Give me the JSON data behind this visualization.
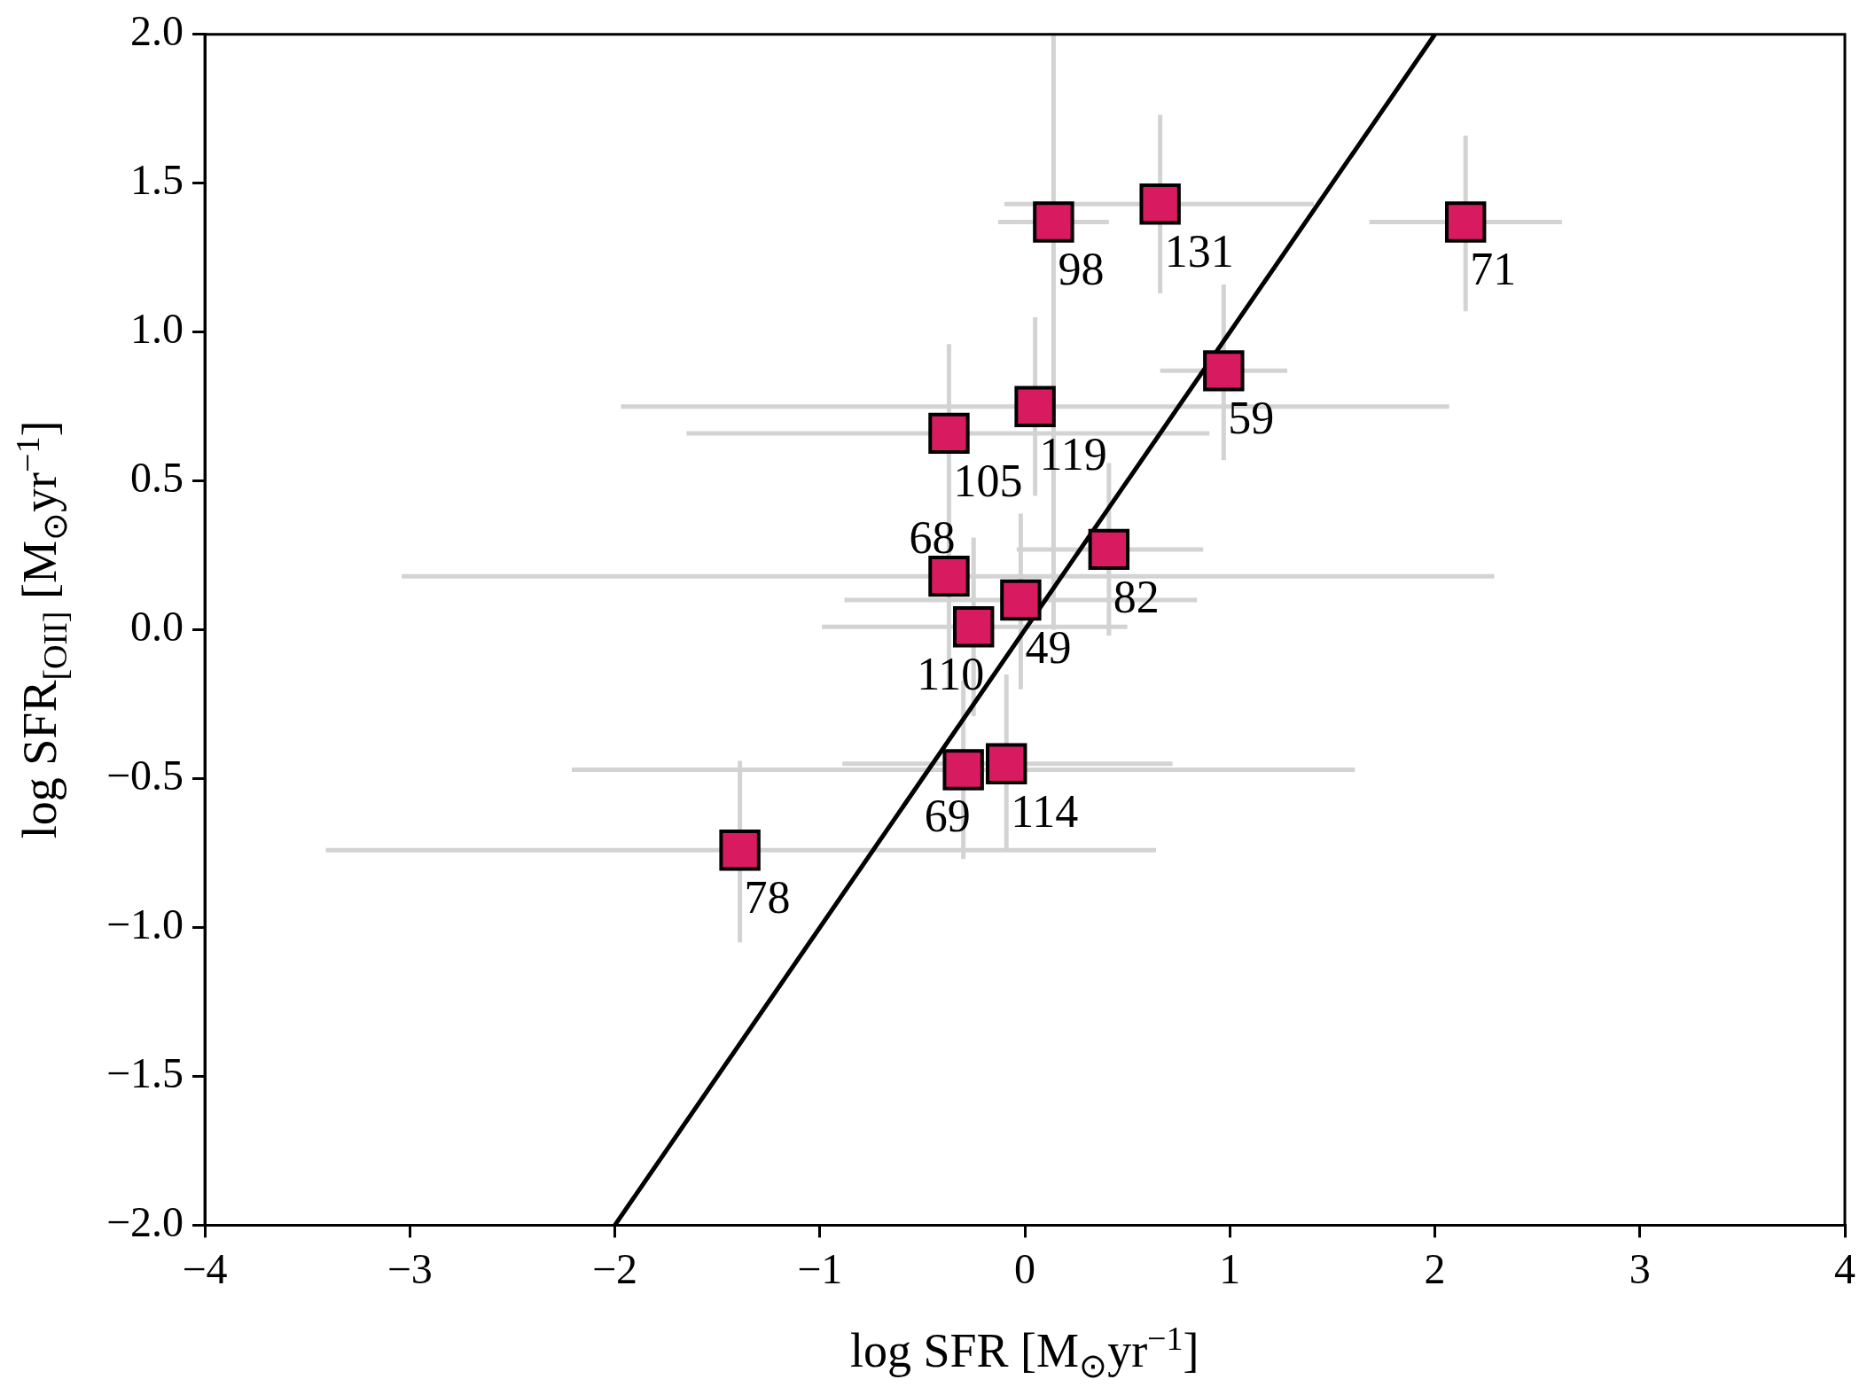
{
  "chart_data": {
    "type": "scatter",
    "xlabel": "log SFR [M$_{⊙}$yr$^{−1}$]",
    "ylabel": "log SFR$_{[OII]}$ [M$_{⊙}$yr$^{−1}$]",
    "xlim": [
      -4,
      4
    ],
    "ylim": [
      -2,
      2
    ],
    "xticks": [
      {
        "value": -4,
        "label": "−4"
      },
      {
        "value": -3,
        "label": "−3"
      },
      {
        "value": -2,
        "label": "−2"
      },
      {
        "value": -1,
        "label": "−1"
      },
      0,
      1,
      2,
      3,
      4
    ],
    "yticks": [
      {
        "value": -2,
        "label": "−2.0"
      },
      {
        "value": -1.5,
        "label": "−1.5"
      },
      {
        "value": -1,
        "label": "−1.0"
      },
      {
        "value": -0.5,
        "label": "−0.5"
      },
      {
        "value": 0,
        "label": "0.0"
      },
      0.5,
      {
        "value": 1,
        "label": "1.0"
      },
      1.5,
      {
        "value": 2,
        "label": "2.0"
      }
    ],
    "grid": false,
    "legend": false,
    "series": [
      {
        "color": "#d81b60",
        "marker": "square",
        "x": [
          0.14,
          0.66,
          2.15,
          0.97,
          0.05,
          -0.37,
          0.41,
          -0.37,
          -0.02,
          -0.25,
          -0.09,
          -0.3,
          -1.39
        ],
        "values": [
          1.37,
          1.43,
          1.37,
          0.87,
          0.75,
          0.66,
          0.27,
          0.18,
          0.1,
          0.01,
          -0.45,
          -0.47,
          -0.74
        ],
        "errors": [
          [
            0.0,
            2.0
          ],
          [
            1.13,
            1.73
          ],
          [
            1.07,
            1.66
          ],
          [
            0.57,
            1.16
          ],
          [
            0.45,
            1.05
          ],
          [
            0.36,
            0.96
          ],
          [
            -0.02,
            0.56
          ],
          [
            -0.2,
            0.56
          ],
          [
            -0.2,
            0.39
          ],
          [
            -0.29,
            0.31
          ],
          [
            -0.74,
            -0.15
          ],
          [
            -0.77,
            -0.17
          ],
          [
            -1.05,
            -0.44
          ]
        ],
        "xerrors": [
          [
            -0.13,
            0.41
          ],
          [
            -0.1,
            1.41
          ],
          [
            1.68,
            2.62
          ],
          [
            0.66,
            1.28
          ],
          [
            -1.97,
            2.07
          ],
          [
            -1.65,
            0.9
          ],
          [
            -0.04,
            0.87
          ],
          [
            -3.04,
            2.29
          ],
          [
            -0.88,
            0.84
          ],
          [
            -0.99,
            0.5
          ],
          [
            -0.89,
            0.72
          ],
          [
            -2.21,
            1.61
          ],
          [
            -3.41,
            0.64
          ]
        ]
      },
      {
        "type": "line",
        "color": "#000000",
        "marker": "none",
        "line_style": "solid",
        "x": [
          -2,
          2
        ],
        "values": [
          -2,
          2
        ]
      }
    ],
    "annotations": [
      {
        "text": "98",
        "x": 0.14,
        "y": 1.37
      },
      {
        "text": "131",
        "x": 0.66,
        "y": 1.43
      },
      {
        "text": "71",
        "x": 2.15,
        "y": 1.37
      },
      {
        "text": "59",
        "x": 0.97,
        "y": 0.87
      },
      {
        "text": "119",
        "x": 0.05,
        "y": 0.75
      },
      {
        "text": "105",
        "x": -0.37,
        "y": 0.66
      },
      {
        "text": "82",
        "x": 0.41,
        "y": 0.27
      },
      {
        "text": "68",
        "x": -0.37,
        "y": 0.18
      },
      {
        "text": "49",
        "x": -0.02,
        "y": 0.1
      },
      {
        "text": "110",
        "x": -0.25,
        "y": 0.01
      },
      {
        "text": "114",
        "x": -0.09,
        "y": -0.45
      },
      {
        "text": "69",
        "x": -0.3,
        "y": -0.47
      },
      {
        "text": "78",
        "x": -1.39,
        "y": -0.74
      }
    ]
  }
}
